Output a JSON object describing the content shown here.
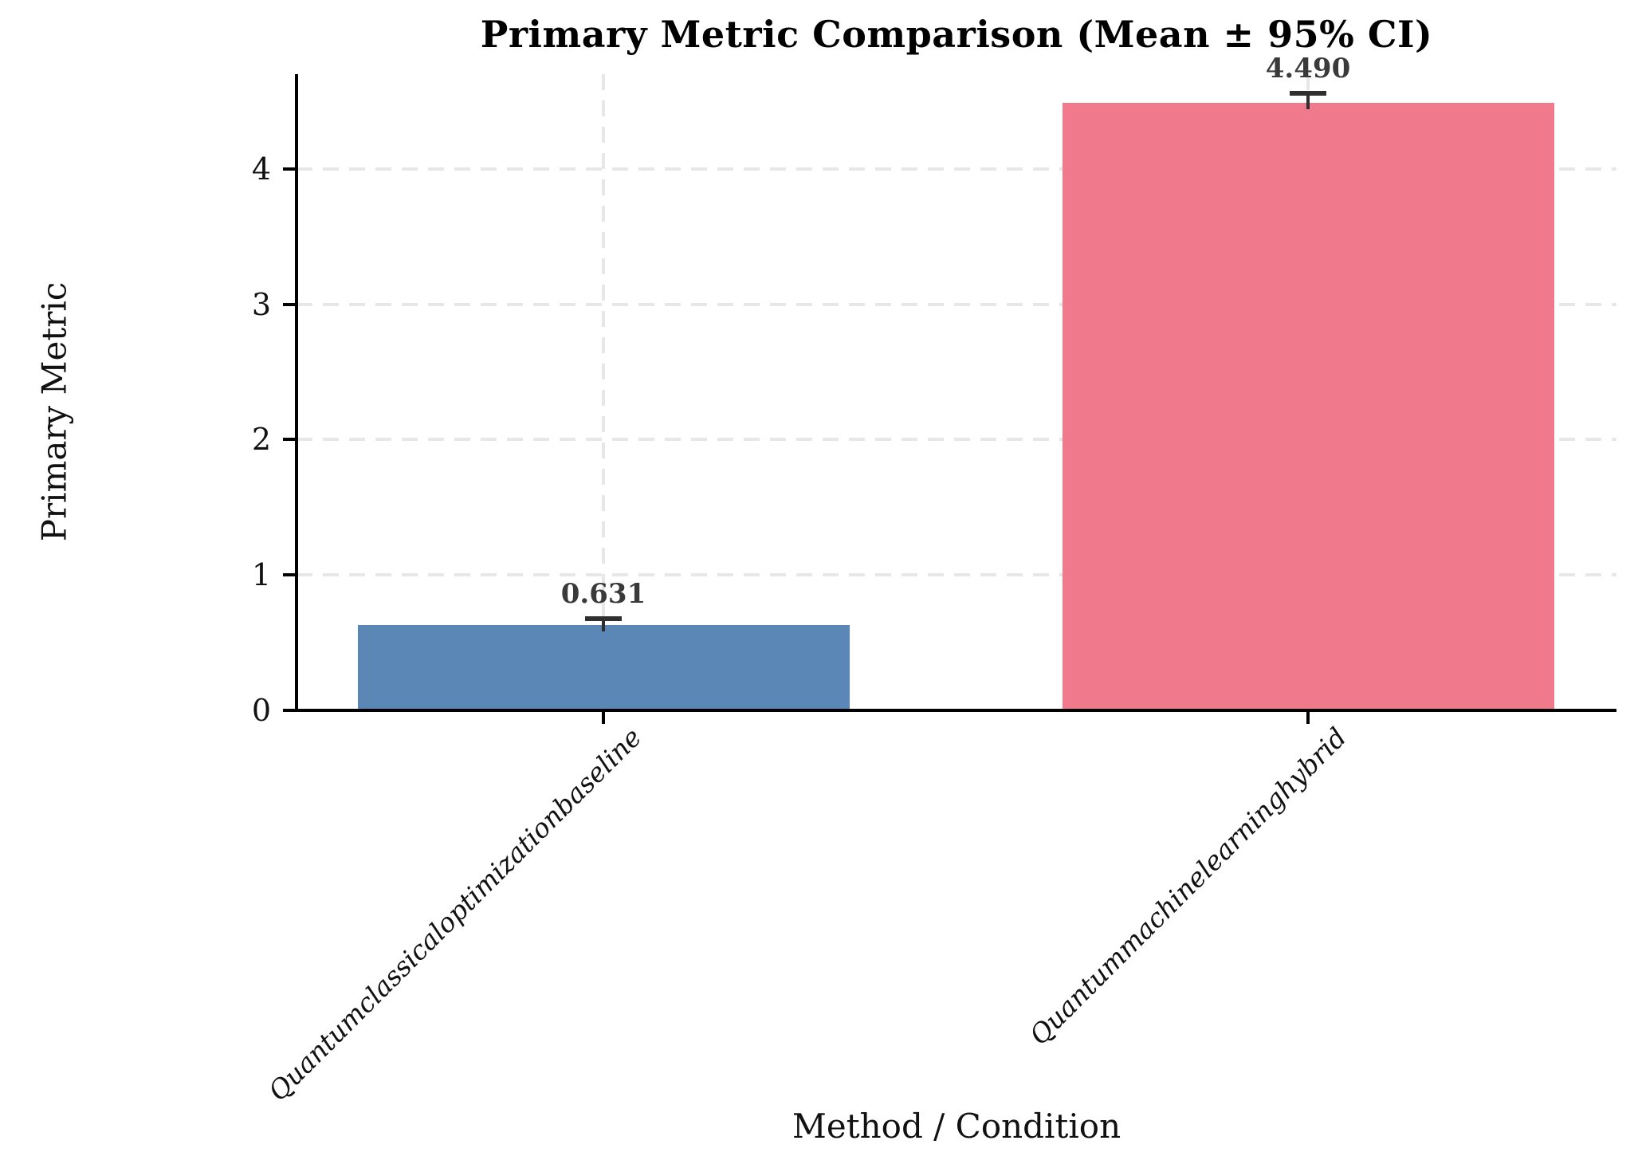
{
  "chart_data": {
    "type": "bar",
    "title": "Primary Metric Comparison (Mean ± 95% CI)",
    "xlabel": "Method / Condition",
    "ylabel": "Primary Metric",
    "categories": [
      "Quantumclassicaloptimizationbaseline",
      "Quantummachinelearninghybrid"
    ],
    "values": [
      0.631,
      4.49
    ],
    "value_labels": [
      "0.631",
      "4.490"
    ],
    "ci_95": [
      0.03,
      0.05
    ],
    "bar_colors": [
      "#5b87b7",
      "#f0798b"
    ],
    "ytick_labels": [
      "0",
      "1",
      "2",
      "3",
      "4"
    ],
    "yticks": [
      0,
      1,
      2,
      3,
      4
    ],
    "ylim": [
      0,
      4.7
    ],
    "grid": "dashed horizontal and vertical gridlines, light gray",
    "legend": "none",
    "error_bar_color": "#2f2f2f",
    "value_label_color": "#3a3a3a"
  }
}
